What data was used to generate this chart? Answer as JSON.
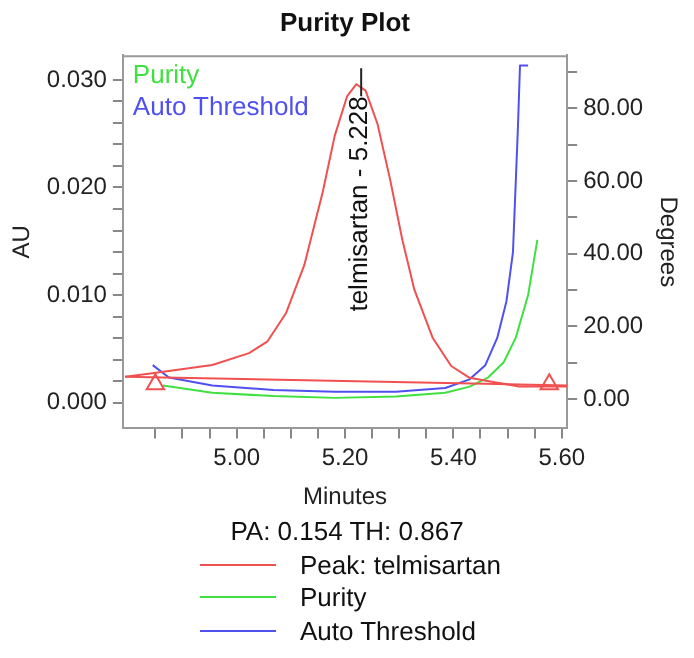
{
  "chart_data": {
    "type": "line",
    "title": "Purity Plot",
    "xlabel": "Minutes",
    "ylabel": "AU",
    "y2label": "Degrees",
    "xlim": [
      4.79,
      5.61
    ],
    "ylim": [
      -0.0024,
      0.0323
    ],
    "y2lim": [
      -8.1,
      94.6
    ],
    "xticks": [
      {
        "value": 4.85,
        "label": null
      },
      {
        "value": 4.9,
        "label": null
      },
      {
        "value": 4.95,
        "label": null
      },
      {
        "value": 5.0,
        "label": "5.00"
      },
      {
        "value": 5.05,
        "label": null
      },
      {
        "value": 5.1,
        "label": null
      },
      {
        "value": 5.15,
        "label": null
      },
      {
        "value": 5.2,
        "label": "5.20"
      },
      {
        "value": 5.25,
        "label": null
      },
      {
        "value": 5.3,
        "label": null
      },
      {
        "value": 5.35,
        "label": null
      },
      {
        "value": 5.4,
        "label": "5.40"
      },
      {
        "value": 5.45,
        "label": null
      },
      {
        "value": 5.5,
        "label": null
      },
      {
        "value": 5.55,
        "label": null
      },
      {
        "value": 5.6,
        "label": "5.60"
      }
    ],
    "yticks": [
      {
        "value": 0,
        "label": "0.000"
      },
      {
        "value": 0.002,
        "label": null
      },
      {
        "value": 0.004,
        "label": null
      },
      {
        "value": 0.006,
        "label": null
      },
      {
        "value": 0.008,
        "label": null
      },
      {
        "value": 0.01,
        "label": "0.010"
      },
      {
        "value": 0.012,
        "label": null
      },
      {
        "value": 0.014,
        "label": null
      },
      {
        "value": 0.016,
        "label": null
      },
      {
        "value": 0.018,
        "label": null
      },
      {
        "value": 0.02,
        "label": "0.020"
      },
      {
        "value": 0.022,
        "label": null
      },
      {
        "value": 0.024,
        "label": null
      },
      {
        "value": 0.026,
        "label": null
      },
      {
        "value": 0.028,
        "label": null
      },
      {
        "value": 0.03,
        "label": "0.030"
      }
    ],
    "y2ticks": [
      {
        "value": 0,
        "label": "0.00"
      },
      {
        "value": 10,
        "label": null
      },
      {
        "value": 20,
        "label": "20.00"
      },
      {
        "value": 30,
        "label": null
      },
      {
        "value": 40,
        "label": "40.00"
      },
      {
        "value": 50,
        "label": null
      },
      {
        "value": 60,
        "label": "60.00"
      },
      {
        "value": 70,
        "label": null
      },
      {
        "value": 80,
        "label": "80.00"
      },
      {
        "value": 90,
        "label": null
      }
    ],
    "grid": false,
    "legend": "bottom",
    "annotations": [
      {
        "text": "telmisartan - 5.228",
        "x": 5.228,
        "y": 0.0296
      },
      "PA:  0.154  TH:  0.867"
    ],
    "series": [
      {
        "name": "Peak: telmisartan",
        "color": "#f05050",
        "marker": "none",
        "x": [
          4.794,
          4.841,
          4.955,
          5.023,
          5.057,
          5.091,
          5.125,
          5.159,
          5.181,
          5.204,
          5.221,
          5.238,
          5.26,
          5.283,
          5.306,
          5.328,
          5.362,
          5.396,
          5.43,
          5.476,
          5.521,
          5.61
        ],
        "values": [
          0.0024,
          0.0027,
          0.0035,
          0.0046,
          0.0057,
          0.0083,
          0.0128,
          0.0196,
          0.0248,
          0.0285,
          0.0296,
          0.029,
          0.0259,
          0.0208,
          0.0151,
          0.0105,
          0.006,
          0.0034,
          0.0023,
          0.0019,
          0.0015,
          0.0015
        ]
      },
      {
        "color": "#f05050",
        "marker": "none",
        "x": [
          4.794,
          5.61
        ],
        "values": [
          0.0024,
          0.0016
        ]
      },
      {
        "type": "scatter",
        "color": "#f05050",
        "marker": "triangle",
        "x": [
          4.85,
          5.577
        ],
        "values": [
          0.0017,
          0.0017
        ]
      },
      {
        "name": "Purity",
        "color": "#40e040",
        "marker": "none",
        "axis": "y2",
        "x": [
          4.864,
          4.955,
          5.068,
          5.181,
          5.294,
          5.385,
          5.43,
          5.464,
          5.493,
          5.515,
          5.538,
          5.555
        ],
        "values": [
          3.7,
          1.7,
          0.8,
          0.3,
          0.7,
          1.7,
          3.4,
          5.9,
          10.1,
          16.8,
          28.6,
          43.8
        ]
      },
      {
        "name": "Auto Threshold",
        "color": "#5050f0",
        "marker": "none",
        "axis": "y2",
        "x": [
          4.845,
          4.875,
          4.955,
          5.068,
          5.181,
          5.294,
          5.385,
          5.43,
          5.459,
          5.481,
          5.498,
          5.51,
          5.519,
          5.523,
          5.538
        ],
        "values": [
          9.3,
          5.9,
          3.7,
          2.5,
          2.0,
          2.0,
          3.0,
          5.4,
          9.3,
          16.8,
          26.9,
          40.4,
          74.1,
          91.8,
          91.8
        ]
      }
    ]
  }
}
